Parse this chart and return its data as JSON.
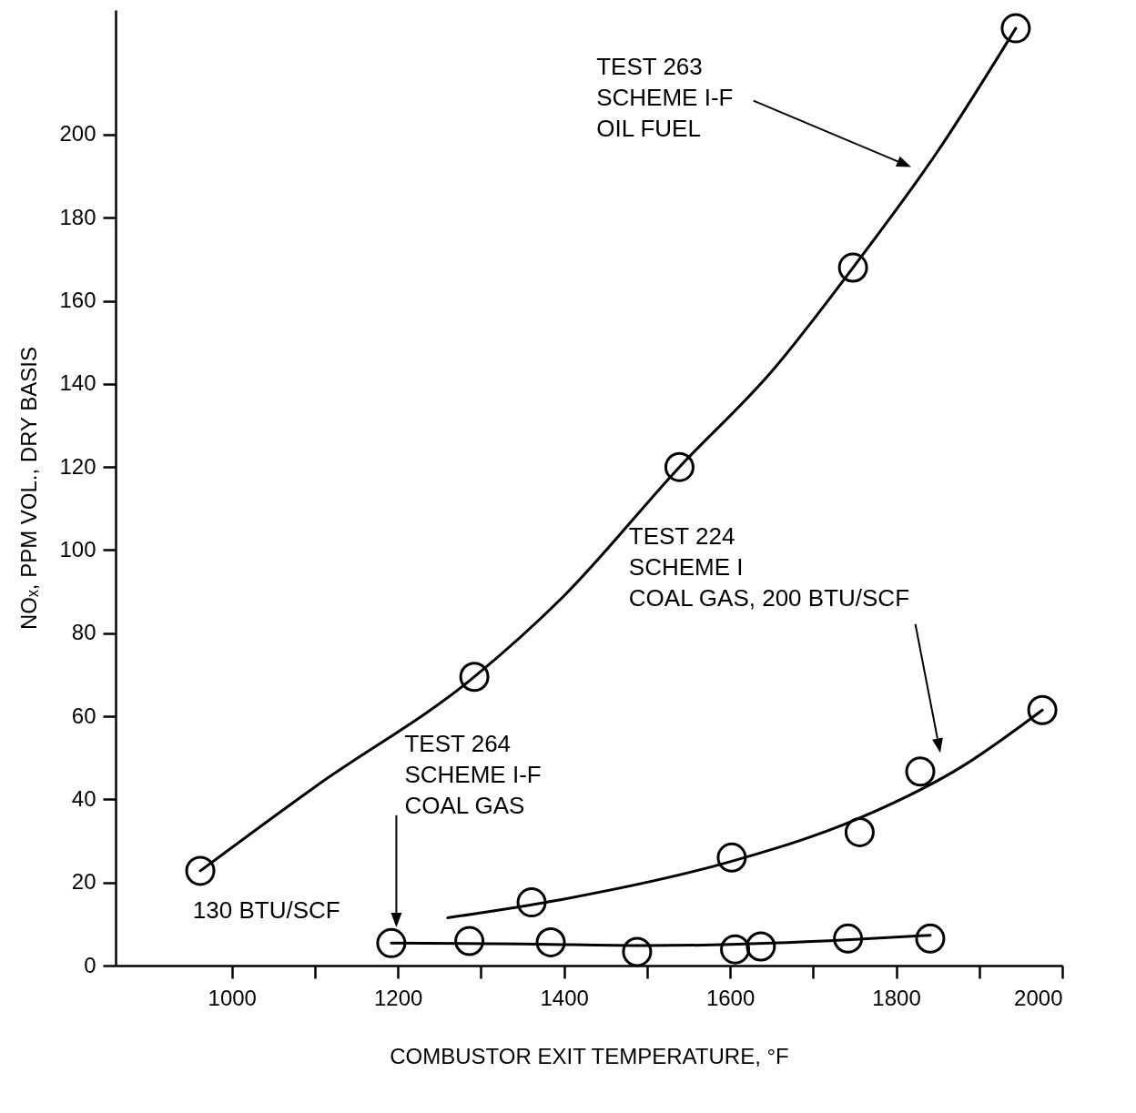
{
  "chart_data": {
    "type": "scatter",
    "xlabel": "COMBUSTOR  EXIT  TEMPERATURE, °F",
    "ylabel": "NOₓ, PPM VOL., DRY BASIS",
    "xlim": [
      860,
      2000
    ],
    "ylim": [
      0,
      230
    ],
    "xticks": [
      1000,
      {
        "value": 1100,
        "label": null
      },
      1200,
      {
        "value": 1300,
        "label": null
      },
      1400,
      {
        "value": 1500,
        "label": null
      },
      1600,
      {
        "value": 1700,
        "label": null
      },
      1800,
      {
        "value": 1900,
        "label": null
      },
      2000
    ],
    "yticks": [
      0,
      20,
      40,
      60,
      80,
      100,
      120,
      140,
      160,
      180,
      200
    ],
    "grid": false,
    "line_style": "solid",
    "series": [
      {
        "marker": "circle",
        "color": "#000000",
        "x": [
          962,
          1292,
          1539,
          1748,
          1944
        ],
        "values": [
          22.8,
          69.5,
          120,
          168,
          225.6
        ]
      },
      {
        "type": "line",
        "color": "#000000",
        "x": [
          962,
          1100,
          1292,
          1400,
          1539,
          1650,
          1748,
          1850,
          1944
        ],
        "values": [
          22.8,
          43,
          69.5,
          89,
          120,
          143,
          168,
          196,
          225.6
        ]
      },
      {
        "marker": "circle",
        "color": "#000000",
        "x": [
          1361,
          1602,
          1756,
          1829,
          1976
        ],
        "values": [
          15.2,
          26,
          32.1,
          46.7,
          61.5
        ]
      },
      {
        "type": "line",
        "color": "#000000",
        "x": [
          1260,
          1400,
          1600,
          1750,
          1880,
          1976
        ],
        "values": [
          11.5,
          16,
          25,
          35,
          48,
          61.5
        ]
      },
      {
        "marker": "circle",
        "color": "#000000",
        "x": [
          1192,
          1286,
          1384,
          1488,
          1606,
          1637,
          1742,
          1841
        ],
        "values": [
          5.4,
          5.9,
          5.6,
          3.3,
          3.9,
          4.6,
          6.5,
          6.5
        ]
      },
      {
        "type": "line",
        "color": "#000000",
        "x": [
          1192,
          1350,
          1500,
          1650,
          1750,
          1841
        ],
        "values": [
          5.4,
          5.2,
          4.8,
          5.4,
          6.3,
          7.3
        ]
      }
    ],
    "annotations": [
      "TEST 263\nSCHEME I-F\nOIL FUEL",
      "TEST 224\nSCHEME I\nCOAL GAS, 200 BTU/SCF",
      "TEST 264\nSCHEME I-F\nCOAL GAS",
      "130  BTU/SCF"
    ]
  }
}
